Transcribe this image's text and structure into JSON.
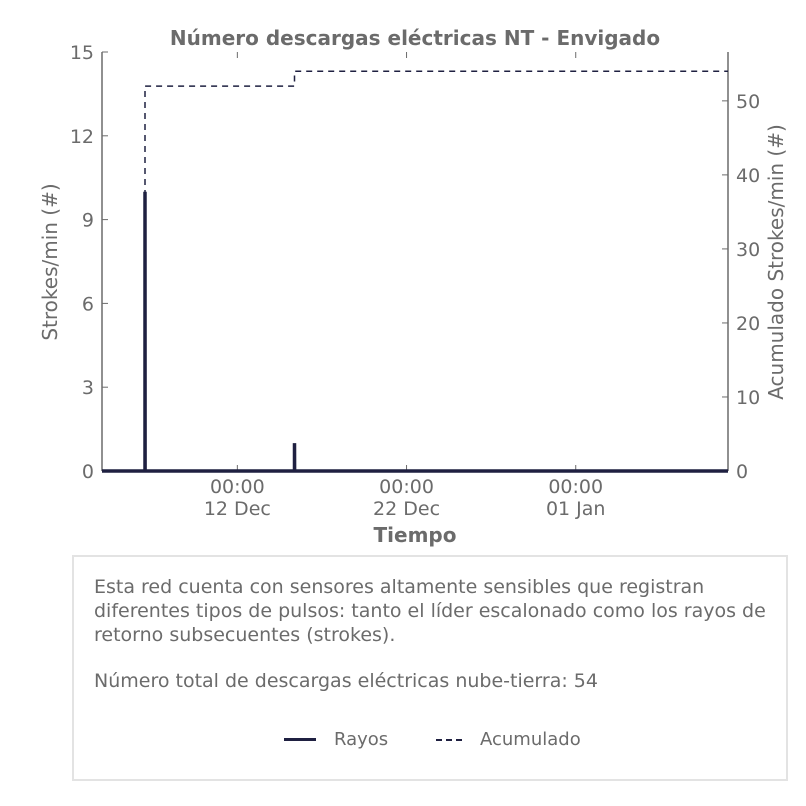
{
  "chart_data": {
    "type": "line",
    "title": "Número descargas eléctricas NT - Envigado",
    "xlabel": "Tiempo",
    "ylabel": "Strokes/min (#)",
    "y2label": "Acumulado Strokes/min (#)",
    "x_ticks": [
      {
        "date": "2023-12-12",
        "line1": "00:00",
        "line2": "12 Dec"
      },
      {
        "date": "2023-12-22",
        "line1": "00:00",
        "line2": "22 Dec"
      },
      {
        "date": "2024-01-01",
        "line1": "00:00",
        "line2": "01 Jan"
      }
    ],
    "xlim": [
      "2023-12-04",
      "2024-01-10"
    ],
    "ylim": [
      0,
      15
    ],
    "y_ticks": [
      0,
      3,
      6,
      9,
      12,
      15
    ],
    "y2lim": [
      0,
      56.6
    ],
    "y2_ticks": [
      0,
      10,
      20,
      30,
      40,
      50
    ],
    "series": [
      {
        "name": "Rayos",
        "axis": "left",
        "style": "solid",
        "color": "#1f2041",
        "points": [
          {
            "x": "2023-12-06T13:00",
            "y": 0
          },
          {
            "x": "2023-12-06T13:00",
            "y": 10
          },
          {
            "x": "2023-12-06T13:10",
            "y": 0
          },
          {
            "x": "2023-12-15T09:00",
            "y": 0
          },
          {
            "x": "2023-12-15T09:00",
            "y": 1
          },
          {
            "x": "2023-12-15T09:10",
            "y": 0
          }
        ]
      },
      {
        "name": "Acumulado",
        "axis": "right",
        "style": "dashed",
        "color": "#1f2041",
        "points": [
          {
            "x": "2023-12-06T13:00",
            "y": 0
          },
          {
            "x": "2023-12-06T13:00",
            "y": 52
          },
          {
            "x": "2023-12-15T09:00",
            "y": 52
          },
          {
            "x": "2023-12-15T09:00",
            "y": 54
          },
          {
            "x": "2024-01-10T00:00",
            "y": 54
          }
        ]
      }
    ],
    "grid": false,
    "legend_position": "bottom"
  },
  "info": {
    "description": "Esta red cuenta con sensores altamente sensibles que registran diferentes tipos de pulsos: tanto el líder escalonado como los rayos de retorno subsecuentes (strokes).",
    "total": "Número total de descargas eléctricas nube-tierra: 54"
  },
  "legend": {
    "rayos": "Rayos",
    "acumulado": "Acumulado"
  }
}
